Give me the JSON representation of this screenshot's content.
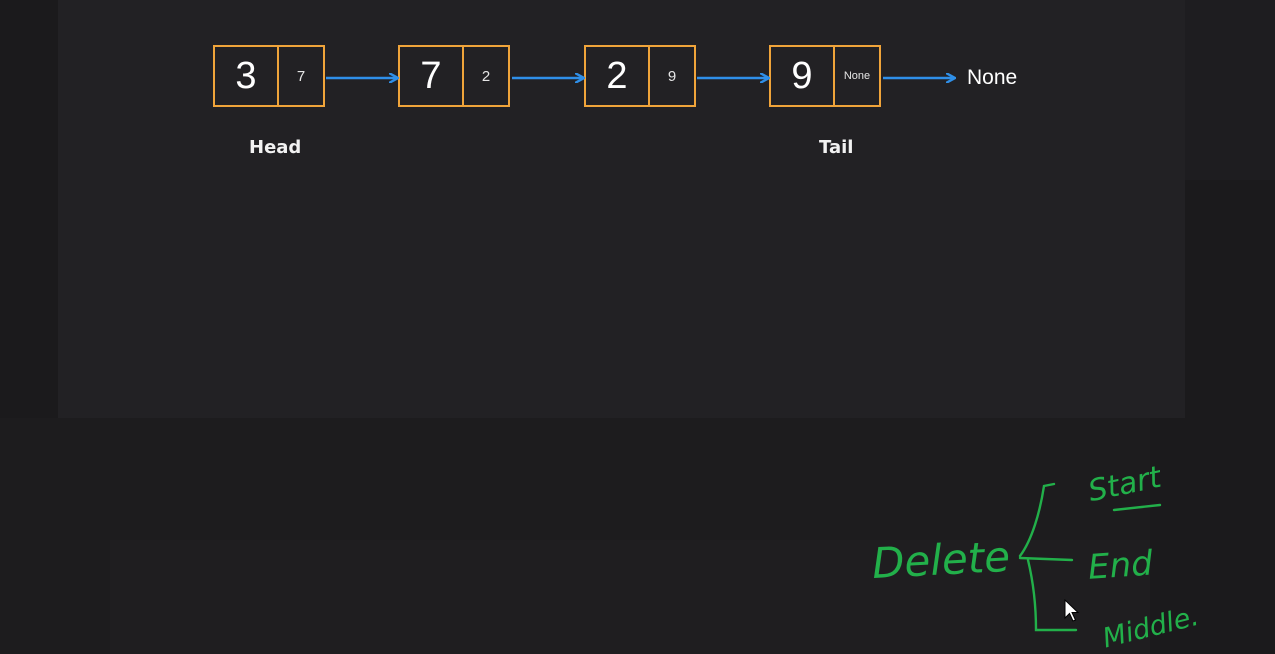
{
  "diagram": {
    "nodes": [
      {
        "data": "3",
        "next": "7"
      },
      {
        "data": "7",
        "next": "2"
      },
      {
        "data": "2",
        "next": "9"
      },
      {
        "data": "9",
        "next": "None"
      }
    ],
    "head_label": "Head",
    "tail_label": "Tail",
    "terminal_label": "None"
  },
  "annotation": {
    "word": "Delete",
    "branches": [
      "Start",
      "End",
      "Middle."
    ]
  },
  "colors": {
    "node_border": "#f0a43a",
    "arrow": "#2f8fe8",
    "ink": "#22b04a",
    "background": "#1b1a1c"
  }
}
